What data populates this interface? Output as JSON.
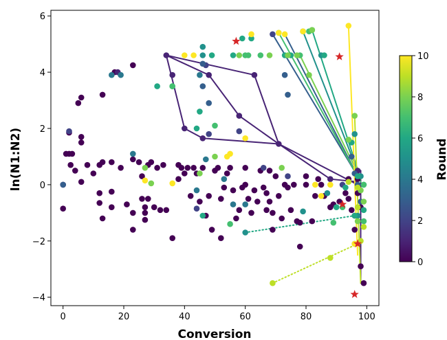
{
  "chart_data": {
    "type": "scatter",
    "xlabel": "Conversion",
    "ylabel": "ln(N1:N2)",
    "colorbar_label": "Round",
    "xlim": [
      -4,
      104
    ],
    "ylim": [
      -4.3,
      6.2
    ],
    "xticks": [
      0,
      20,
      40,
      60,
      80,
      100
    ],
    "yticks": [
      -4,
      -2,
      0,
      2,
      4,
      6
    ],
    "colorbar": {
      "min": 0,
      "max": 10,
      "ticks": [
        0,
        2,
        4,
        6,
        8,
        10
      ],
      "colormap": "viridis"
    },
    "grid": false,
    "points": [
      [
        0,
        0,
        0
      ],
      [
        0,
        -0.85,
        0
      ],
      [
        1,
        1.1,
        0
      ],
      [
        2,
        1.85,
        0
      ],
      [
        2,
        1.1,
        0
      ],
      [
        3,
        1.1,
        0
      ],
      [
        2.5,
        0.7,
        0
      ],
      [
        4,
        0.5,
        0
      ],
      [
        5,
        2.9,
        0
      ],
      [
        6,
        3.1,
        0
      ],
      [
        6,
        1.7,
        0
      ],
      [
        6,
        1.5,
        0
      ],
      [
        6,
        0.1,
        0
      ],
      [
        8,
        0.7,
        0
      ],
      [
        10,
        0.4,
        0
      ],
      [
        12,
        -0.65,
        0
      ],
      [
        12,
        -0.3,
        0
      ],
      [
        12,
        0.7,
        0
      ],
      [
        13,
        0.8,
        0
      ],
      [
        13,
        -1.2,
        0
      ],
      [
        13,
        3.2,
        0
      ],
      [
        16,
        0.8,
        0
      ],
      [
        16,
        -0.25,
        0
      ],
      [
        16,
        -0.8,
        0
      ],
      [
        17,
        4.0,
        0
      ],
      [
        19,
        0.6,
        0
      ],
      [
        21,
        -0.7,
        0
      ],
      [
        23,
        -1.0,
        0
      ],
      [
        23,
        -1.6,
        0
      ],
      [
        23,
        0.9,
        0
      ],
      [
        23,
        4.25,
        0
      ],
      [
        25,
        0.8,
        0
      ],
      [
        26,
        -0.5,
        0
      ],
      [
        26,
        0.3,
        0
      ],
      [
        27,
        -0.8,
        0
      ],
      [
        27,
        -1.0,
        0
      ],
      [
        27,
        -1.25,
        0
      ],
      [
        28,
        0.7,
        0
      ],
      [
        28,
        -0.5,
        0
      ],
      [
        29,
        0.8,
        0
      ],
      [
        30,
        -0.8,
        0
      ],
      [
        31,
        0.6,
        0
      ],
      [
        32,
        -0.9,
        0
      ],
      [
        33,
        0.7,
        0
      ],
      [
        34,
        -0.9,
        0
      ],
      [
        36,
        -1.9,
        0
      ],
      [
        38,
        0.7,
        0
      ],
      [
        38,
        0.2,
        0
      ],
      [
        39,
        0.6,
        0
      ],
      [
        40,
        0.4,
        0
      ],
      [
        41,
        0.6,
        0
      ],
      [
        42,
        -0.4,
        0
      ],
      [
        43,
        0.6,
        0
      ],
      [
        44,
        0.4,
        0
      ],
      [
        45,
        -0.6,
        0
      ],
      [
        46,
        0.6,
        0
      ],
      [
        47,
        -1.1,
        0
      ],
      [
        48,
        -0.4,
        0
      ],
      [
        49,
        -1.6,
        0
      ],
      [
        50,
        0.5,
        0
      ],
      [
        51,
        0.6,
        0
      ],
      [
        52,
        -0.5,
        0
      ],
      [
        52,
        -1.9,
        0
      ],
      [
        53,
        -0.1,
        0
      ],
      [
        54,
        0.4,
        0
      ],
      [
        55,
        0.6,
        0
      ],
      [
        56,
        -0.2,
        0
      ],
      [
        57,
        -1.2,
        0
      ],
      [
        58,
        -0.9,
        0
      ],
      [
        59,
        -0.1,
        0
      ],
      [
        60,
        0.0,
        0
      ],
      [
        60,
        0.6,
        0
      ],
      [
        61,
        -0.5,
        0
      ],
      [
        62,
        -1.0,
        0
      ],
      [
        63,
        -0.2,
        0
      ],
      [
        64,
        -0.6,
        0
      ],
      [
        65,
        0.5,
        0
      ],
      [
        66,
        -0.1,
        0
      ],
      [
        67,
        -0.3,
        0
      ],
      [
        67,
        -0.9,
        0
      ],
      [
        68,
        -0.6,
        0
      ],
      [
        68,
        0.5,
        0
      ],
      [
        69,
        -1.0,
        0
      ],
      [
        69,
        -1.6,
        0
      ],
      [
        70,
        0.3,
        0
      ],
      [
        71,
        -0.4,
        0
      ],
      [
        72,
        -1.2,
        0
      ],
      [
        73,
        0.0,
        0
      ],
      [
        74,
        -0.1,
        0
      ],
      [
        75,
        -0.9,
        0
      ],
      [
        76,
        0.0,
        0
      ],
      [
        77,
        -1.3,
        0
      ],
      [
        78,
        -1.35,
        0
      ],
      [
        78,
        -2.2,
        0
      ],
      [
        80,
        0.0,
        0
      ],
      [
        80,
        0.3,
        0
      ],
      [
        82,
        -1.3,
        0
      ],
      [
        83,
        -0.4,
        0
      ],
      [
        84,
        0.2,
        0
      ],
      [
        85,
        0.0,
        0
      ],
      [
        86,
        -0.4,
        0
      ],
      [
        88,
        -0.8,
        0
      ],
      [
        89,
        -0.7,
        0
      ],
      [
        91,
        -0.6,
        0
      ],
      [
        93,
        -0.3,
        0
      ],
      [
        94,
        0.2,
        0
      ],
      [
        94,
        -0.5,
        0
      ],
      [
        95,
        -0.9,
        0
      ],
      [
        96,
        -1.1,
        0
      ],
      [
        96,
        -1.6,
        0
      ],
      [
        97,
        0.2,
        0
      ],
      [
        97,
        -0.3,
        0
      ],
      [
        98,
        -0.8,
        0
      ],
      [
        98,
        -2.9,
        0
      ],
      [
        99,
        -3.5,
        0
      ],
      [
        18,
        4.0,
        1
      ],
      [
        34,
        4.6,
        1
      ],
      [
        36,
        3.9,
        1
      ],
      [
        40,
        2.0,
        1
      ],
      [
        46,
        1.65,
        1
      ],
      [
        48,
        3.9,
        1
      ],
      [
        58,
        2.45,
        1
      ],
      [
        63,
        3.9,
        1
      ],
      [
        71,
        1.45,
        1
      ],
      [
        88,
        0.2,
        1
      ],
      [
        97,
        0.5,
        1
      ],
      [
        2,
        1.9,
        2
      ],
      [
        44,
        -0.85,
        2
      ],
      [
        47,
        4.25,
        2
      ],
      [
        48,
        1.8,
        2
      ],
      [
        58,
        1.9,
        2
      ],
      [
        66,
        0.6,
        2
      ],
      [
        69,
        5.35,
        2
      ],
      [
        74,
        0.3,
        2
      ],
      [
        92,
        0.0,
        2
      ],
      [
        0,
        0.0,
        3
      ],
      [
        46,
        4.3,
        3
      ],
      [
        46,
        3.5,
        3
      ],
      [
        48,
        2.9,
        3
      ],
      [
        73,
        3.9,
        3
      ],
      [
        74,
        3.2,
        3
      ],
      [
        95,
        1.0,
        3
      ],
      [
        96,
        0.4,
        3
      ],
      [
        97,
        0.0,
        3
      ],
      [
        98,
        -0.6,
        3
      ],
      [
        16,
        3.9,
        4
      ],
      [
        19,
        3.9,
        4
      ],
      [
        23,
        1.1,
        4
      ],
      [
        44,
        -0.2,
        4
      ],
      [
        45,
        3.9,
        4
      ],
      [
        47,
        0.9,
        4
      ],
      [
        53,
        0.2,
        4
      ],
      [
        56,
        -0.7,
        4
      ],
      [
        60,
        -0.7,
        4
      ],
      [
        46,
        4.9,
        5
      ],
      [
        46,
        4.6,
        5
      ],
      [
        60,
        -1.7,
        5
      ],
      [
        79,
        5.45,
        5
      ],
      [
        79,
        -0.95,
        5
      ],
      [
        85,
        4.6,
        5
      ],
      [
        87,
        -0.3,
        5
      ],
      [
        96,
        1.8,
        5
      ],
      [
        98,
        0.3,
        5
      ],
      [
        97,
        -1.1,
        5
      ],
      [
        31,
        3.5,
        6
      ],
      [
        36,
        3.5,
        6
      ],
      [
        44,
        2.0,
        6
      ],
      [
        45,
        2.6,
        6
      ],
      [
        46,
        -1.1,
        6
      ],
      [
        49,
        4.6,
        6
      ],
      [
        56,
        4.6,
        6
      ],
      [
        59,
        5.2,
        6
      ],
      [
        62,
        5.2,
        6
      ],
      [
        73,
        4.6,
        6
      ],
      [
        75,
        4.6,
        6
      ],
      [
        82,
        5.5,
        6
      ],
      [
        86,
        4.6,
        6
      ],
      [
        90,
        -0.8,
        6
      ],
      [
        93,
        -0.1,
        6
      ],
      [
        95,
        1.5,
        6
      ],
      [
        96,
        -1.1,
        6
      ],
      [
        97,
        0.3,
        6
      ],
      [
        99,
        -0.9,
        6
      ],
      [
        99,
        0.0,
        6
      ],
      [
        36,
        3.5,
        7
      ],
      [
        50,
        2.1,
        7
      ],
      [
        55,
        -1.4,
        7
      ],
      [
        60,
        4.6,
        7
      ],
      [
        61,
        4.6,
        7
      ],
      [
        65,
        4.6,
        7
      ],
      [
        71,
        5.4,
        7
      ],
      [
        78,
        4.6,
        7
      ],
      [
        81,
        5.45,
        7
      ],
      [
        89,
        -1.35,
        7
      ],
      [
        92,
        -0.8,
        7
      ],
      [
        96,
        -2.1,
        7
      ],
      [
        99,
        -1.3,
        7
      ],
      [
        99,
        0.0,
        7
      ],
      [
        27,
        0.6,
        8
      ],
      [
        29,
        0.05,
        8
      ],
      [
        45,
        0.4,
        8
      ],
      [
        50,
        1.0,
        8
      ],
      [
        58,
        4.6,
        8
      ],
      [
        68,
        4.6,
        8
      ],
      [
        72,
        0.6,
        8
      ],
      [
        74,
        4.6,
        8
      ],
      [
        77,
        4.6,
        8
      ],
      [
        81,
        3.9,
        8
      ],
      [
        82,
        5.5,
        8
      ],
      [
        94,
        1.6,
        8
      ],
      [
        96,
        2.45,
        8
      ],
      [
        97,
        -1.3,
        8
      ],
      [
        98,
        -0.2,
        8
      ],
      [
        99,
        -0.6,
        8
      ],
      [
        69,
        -3.5,
        9
      ],
      [
        88,
        -2.6,
        9
      ],
      [
        94,
        0.1,
        9
      ],
      [
        97,
        -0.1,
        9
      ],
      [
        97,
        -0.8,
        9
      ],
      [
        98,
        -2.0,
        9
      ],
      [
        99,
        -1.5,
        9
      ],
      [
        27,
        0.15,
        10
      ],
      [
        36,
        0.05,
        10
      ],
      [
        40,
        4.6,
        10
      ],
      [
        43,
        4.6,
        10
      ],
      [
        54,
        1.0,
        10
      ],
      [
        55,
        1.1,
        10
      ],
      [
        60,
        1.65,
        10
      ],
      [
        62,
        5.35,
        10
      ],
      [
        71,
        5.4,
        10
      ],
      [
        73,
        5.35,
        10
      ],
      [
        79,
        5.45,
        10
      ],
      [
        83,
        0.0,
        10
      ],
      [
        85,
        -0.4,
        10
      ],
      [
        88,
        0.0,
        10
      ],
      [
        94,
        5.65,
        10
      ],
      [
        96,
        -2.1,
        10
      ]
    ],
    "stars": [
      [
        57,
        5.1
      ],
      [
        91,
        4.55
      ],
      [
        92,
        -0.7
      ],
      [
        96,
        -3.9
      ],
      [
        97,
        -2.1
      ]
    ],
    "paths": [
      {
        "color": 1,
        "style": "solid",
        "points": [
          [
            34,
            4.6
          ],
          [
            40,
            2.0
          ],
          [
            46,
            1.65
          ],
          [
            71,
            1.45
          ],
          [
            97,
            0.0
          ]
        ]
      },
      {
        "color": 1,
        "style": "solid",
        "points": [
          [
            34,
            4.6
          ],
          [
            48,
            3.9
          ],
          [
            58,
            2.45
          ],
          [
            71,
            1.45
          ]
        ]
      },
      {
        "color": 1,
        "style": "solid",
        "points": [
          [
            34,
            4.6
          ],
          [
            63,
            3.9
          ],
          [
            71,
            1.45
          ]
        ]
      },
      {
        "color": 1,
        "style": "solid",
        "points": [
          [
            71,
            1.45
          ],
          [
            88,
            0.2
          ],
          [
            97,
            0.1
          ]
        ]
      },
      {
        "color": 1,
        "style": "solid",
        "points": [
          [
            98,
            0.5
          ],
          [
            98,
            -3.5
          ]
        ]
      },
      {
        "color": 3,
        "style": "solid",
        "points": [
          [
            69,
            5.35
          ],
          [
            97,
            0.3
          ]
        ]
      },
      {
        "color": 3,
        "style": "solid",
        "points": [
          [
            73,
            5.35
          ],
          [
            97,
            0.3
          ]
        ]
      },
      {
        "color": 5,
        "style": "solid",
        "points": [
          [
            79,
            5.45
          ],
          [
            98,
            0.2
          ]
        ]
      },
      {
        "color": 6,
        "style": "solid",
        "points": [
          [
            82,
            5.5
          ],
          [
            98,
            0.2
          ]
        ]
      },
      {
        "color": 7,
        "style": "solid",
        "points": [
          [
            71,
            5.4
          ],
          [
            98,
            0.1
          ]
        ]
      },
      {
        "color": 8,
        "style": "solid",
        "points": [
          [
            78,
            4.6
          ],
          [
            98,
            0.2
          ]
        ]
      },
      {
        "color": 9,
        "style": "solid",
        "points": [
          [
            96,
            2.45
          ],
          [
            98,
            -3.5
          ]
        ]
      },
      {
        "color": 10,
        "style": "solid",
        "points": [
          [
            94,
            5.65
          ],
          [
            97,
            -2.5
          ]
        ]
      },
      {
        "color": 6,
        "style": "dotted",
        "points": [
          [
            60,
            -1.7
          ],
          [
            96,
            -1.1
          ]
        ]
      },
      {
        "color": 9,
        "style": "dotted",
        "points": [
          [
            69,
            -3.5
          ],
          [
            97,
            -2.1
          ]
        ]
      }
    ]
  }
}
